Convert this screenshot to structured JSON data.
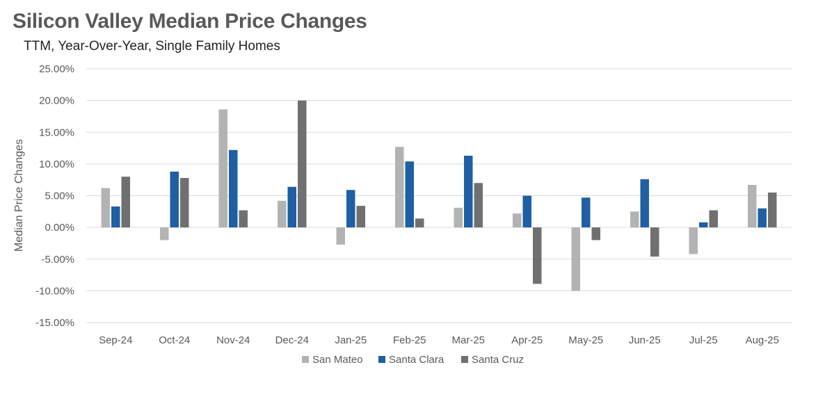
{
  "title": "Silicon Valley Median Price Changes",
  "subtitle": "TTM, Year-Over-Year, Single Family Homes",
  "chart_data": {
    "type": "bar",
    "ylabel": "Median Price Changes",
    "xlabel": "",
    "ylim": [
      -15,
      25
    ],
    "yticks": [
      25,
      20,
      15,
      10,
      5,
      0,
      -5,
      -10,
      -15
    ],
    "ytick_labels": [
      "25.00%",
      "20.00%",
      "15.00%",
      "10.00%",
      "5.00%",
      "0.00%",
      "-5.00%",
      "-10.00%",
      "-15.00%"
    ],
    "grid": true,
    "legend_position": "bottom",
    "categories": [
      "Sep-24",
      "Oct-24",
      "Nov-24",
      "Dec-24",
      "Jan-25",
      "Feb-25",
      "Mar-25",
      "Apr-25",
      "May-25",
      "Jun-25",
      "Jul-25",
      "Aug-25"
    ],
    "series": [
      {
        "name": "San Mateo",
        "color": "#b3b3b3",
        "values": [
          6.2,
          -2.0,
          18.6,
          4.2,
          -2.7,
          12.7,
          3.1,
          2.2,
          -10.0,
          2.5,
          -4.2,
          6.7
        ]
      },
      {
        "name": "Santa Clara",
        "color": "#1f5fa3",
        "values": [
          3.3,
          8.8,
          12.2,
          6.4,
          5.9,
          10.4,
          11.3,
          5.0,
          4.7,
          7.6,
          0.8,
          3.0
        ]
      },
      {
        "name": "Santa Cruz",
        "color": "#707070",
        "values": [
          8.0,
          7.8,
          2.7,
          20.0,
          3.4,
          1.4,
          7.0,
          -8.9,
          -2.0,
          -4.6,
          2.7,
          5.5
        ]
      }
    ]
  }
}
